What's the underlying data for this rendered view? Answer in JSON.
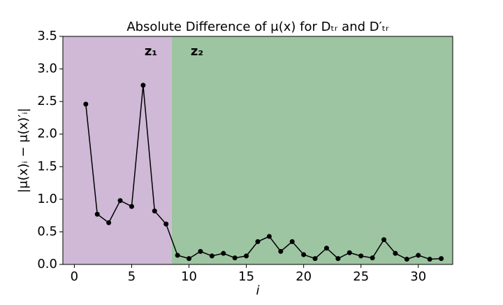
{
  "chart_data": {
    "type": "line",
    "title": "Absolute Difference of μ(x) for Dₜᵣ and D′ₜᵣ",
    "xlabel": "i",
    "ylabel": "|μ(x)ᵢ − μ(x)′ᵢ|",
    "annotations": [
      "z₁",
      "z₂"
    ],
    "regions": [
      {
        "start": -1,
        "end": 8.5,
        "color": "#cfb9d6"
      },
      {
        "start": 8.5,
        "end": 33,
        "color": "#9dc5a1"
      }
    ],
    "x": [
      1,
      2,
      3,
      4,
      5,
      6,
      7,
      8,
      9,
      10,
      11,
      12,
      13,
      14,
      15,
      16,
      17,
      18,
      19,
      20,
      21,
      22,
      23,
      24,
      25,
      26,
      27,
      28,
      29,
      30,
      31,
      32
    ],
    "series": [
      {
        "color": "#000000",
        "values": [
          2.46,
          0.77,
          0.64,
          0.98,
          0.89,
          2.75,
          0.82,
          0.62,
          0.14,
          0.09,
          0.2,
          0.13,
          0.17,
          0.1,
          0.13,
          0.35,
          0.43,
          0.2,
          0.35,
          0.15,
          0.09,
          0.25,
          0.09,
          0.18,
          0.13,
          0.1,
          0.38,
          0.17,
          0.08,
          0.14,
          0.08,
          0.09
        ]
      }
    ],
    "xlim": [
      -1,
      33
    ],
    "xticks": [
      0,
      5,
      10,
      15,
      20,
      25,
      30
    ],
    "ylim": [
      0,
      3.5
    ],
    "yticks": [
      {
        "value": 0,
        "label": "0.0"
      },
      {
        "value": 0.5,
        "label": "0.5"
      },
      {
        "value": 1,
        "label": "1.0"
      },
      {
        "value": 1.5,
        "label": "1.5"
      },
      {
        "value": 2,
        "label": "2.0"
      },
      {
        "value": 2.5,
        "label": "2.5"
      },
      {
        "value": 3,
        "label": "3.0"
      },
      {
        "value": 3.5,
        "label": "3.5"
      }
    ]
  }
}
